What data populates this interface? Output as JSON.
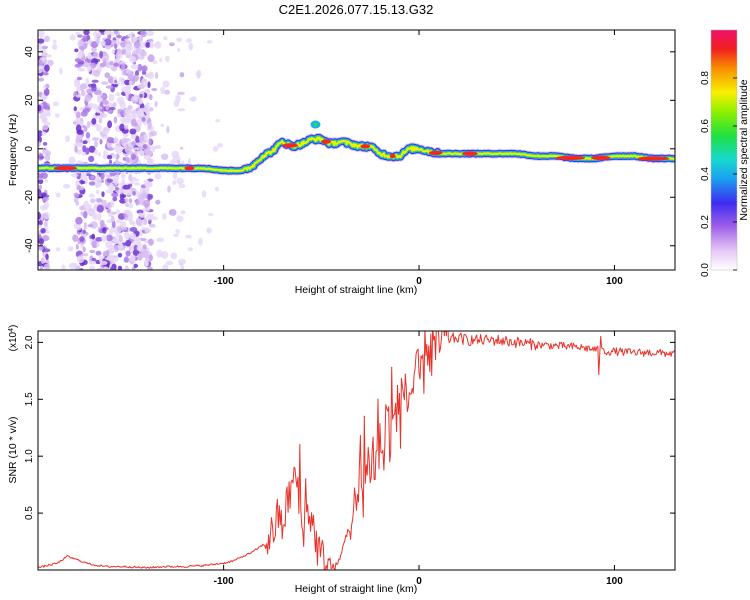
{
  "title": "C2E1.2026.077.15.13.G32",
  "colors": {
    "snr_line": "#e8322a",
    "axis": "#000000",
    "background": "#ffffff"
  },
  "colorbar": {
    "label": "Normalized spectral amplitude",
    "ticks": [
      "0.0",
      "0.2",
      "0.4",
      "0.6",
      "0.8"
    ],
    "tick_values": [
      0.0,
      0.2,
      0.4,
      0.6,
      0.8
    ],
    "range": [
      0,
      1
    ]
  },
  "chart_data": [
    {
      "type": "heatmap",
      "name": "spectrogram",
      "xlabel": "Height of straight line (km)",
      "ylabel": "Frequency (Hz)",
      "xlim": [
        -195,
        131
      ],
      "ylim": [
        -50,
        49
      ],
      "x_ticks": [
        -100,
        0,
        100
      ],
      "x_tick_labels": [
        "-100",
        "0",
        "100"
      ],
      "y_ticks": [
        -40,
        -20,
        0,
        20,
        40
      ],
      "y_tick_labels": [
        "-40",
        "-20",
        "0",
        "20",
        "40"
      ],
      "ridge": {
        "description": "dominant spectral ridge (frequency vs height)",
        "x": [
          -195,
          -185,
          -170,
          -160,
          -150,
          -140,
          -130,
          -120,
          -110,
          -100,
          -90,
          -85,
          -80,
          -75,
          -70,
          -65,
          -60,
          -55,
          -50,
          -45,
          -40,
          -35,
          -30,
          -25,
          -20,
          -15,
          -10,
          -5,
          0,
          10,
          20,
          30,
          40,
          50,
          60,
          70,
          80,
          90,
          100,
          110,
          120,
          131
        ],
        "y": [
          -8,
          -8,
          -8,
          -8,
          -8,
          -8,
          -8,
          -8,
          -8,
          -9,
          -9,
          -7,
          -3,
          -1,
          3,
          1,
          2,
          4,
          4,
          2,
          3,
          2,
          1,
          1,
          -2,
          -3,
          -3,
          0,
          0,
          -2,
          -2,
          -2,
          -2,
          -2,
          -3,
          -3,
          -4,
          -4,
          -3,
          -3,
          -4,
          -4
        ]
      },
      "noise_band": {
        "x_range": [
          -175,
          -137
        ],
        "description": "broadband noise speckle"
      }
    },
    {
      "type": "line",
      "name": "snr",
      "xlabel": "Height of straight line (km)",
      "ylabel": "SNR (10 * v/v)",
      "multiplier_label": "(x10",
      "multiplier_exp": "4",
      "multiplier_close": ")",
      "xlim": [
        -195,
        131
      ],
      "ylim": [
        0,
        2.1
      ],
      "x_ticks": [
        -100,
        0,
        100
      ],
      "x_tick_labels": [
        "-100",
        "0",
        "100"
      ],
      "y_ticks": [
        0.5,
        1.0,
        1.5,
        2.0
      ],
      "y_tick_labels": [
        "0.5",
        "1.0",
        "1.5",
        "2.0"
      ],
      "series": [
        {
          "name": "SNR",
          "x": [
            -195,
            -190,
            -185,
            -180,
            -175,
            -170,
            -165,
            -160,
            -150,
            -140,
            -130,
            -120,
            -110,
            -100,
            -95,
            -90,
            -85,
            -80,
            -75,
            -72,
            -70,
            -67,
            -65,
            -63,
            -61,
            -59,
            -57,
            -55,
            -52,
            -50,
            -47,
            -45,
            -42,
            -40,
            -38,
            -36,
            -34,
            -32,
            -30,
            -28,
            -26,
            -24,
            -22,
            -20,
            -18,
            -16,
            -14,
            -12,
            -10,
            -8,
            -6,
            -4,
            -2,
            0,
            2,
            5,
            10,
            15,
            20,
            25,
            30,
            40,
            50,
            60,
            70,
            80,
            85,
            90,
            92,
            95,
            100,
            110,
            120,
            131
          ],
          "y": [
            0.02,
            0.04,
            0.06,
            0.12,
            0.09,
            0.06,
            0.04,
            0.03,
            0.03,
            0.02,
            0.03,
            0.03,
            0.04,
            0.06,
            0.08,
            0.12,
            0.16,
            0.22,
            0.32,
            0.48,
            0.38,
            0.62,
            0.74,
            0.86,
            0.45,
            0.38,
            0.52,
            0.46,
            0.2,
            0.12,
            0.05,
            0.02,
            0.04,
            0.12,
            0.28,
            0.35,
            0.4,
            0.55,
            0.7,
            0.78,
            0.9,
            1.05,
            0.9,
            1.1,
            1.0,
            1.3,
            1.15,
            1.4,
            1.3,
            1.55,
            1.48,
            1.6,
            1.56,
            1.72,
            1.8,
            1.92,
            1.98,
            2.03,
            2.04,
            2.02,
            2.02,
            2.02,
            2.0,
            1.98,
            1.97,
            1.96,
            1.95,
            1.94,
            1.93,
            1.92,
            1.92,
            1.91,
            1.91,
            1.9
          ],
          "spikes": [
            {
              "x": -61,
              "y": 1.1
            },
            {
              "x": -58,
              "y": 0.8
            },
            {
              "x": -33,
              "y": 0.72
            },
            {
              "x": -30,
              "y": 1.18
            },
            {
              "x": -28,
              "y": 1.35
            },
            {
              "x": -21,
              "y": 1.5
            },
            {
              "x": -17,
              "y": 1.45
            },
            {
              "x": -14,
              "y": 1.78
            },
            {
              "x": -10,
              "y": 1.55
            },
            {
              "x": -7,
              "y": 1.72
            },
            {
              "x": 1,
              "y": 1.88
            },
            {
              "x": 4,
              "y": 1.98
            },
            {
              "x": 8,
              "y": 2.05
            },
            {
              "x": 13,
              "y": 2.06
            },
            {
              "x": 92,
              "y": 1.72
            },
            {
              "x": 93,
              "y": 2.05
            }
          ]
        }
      ]
    }
  ]
}
